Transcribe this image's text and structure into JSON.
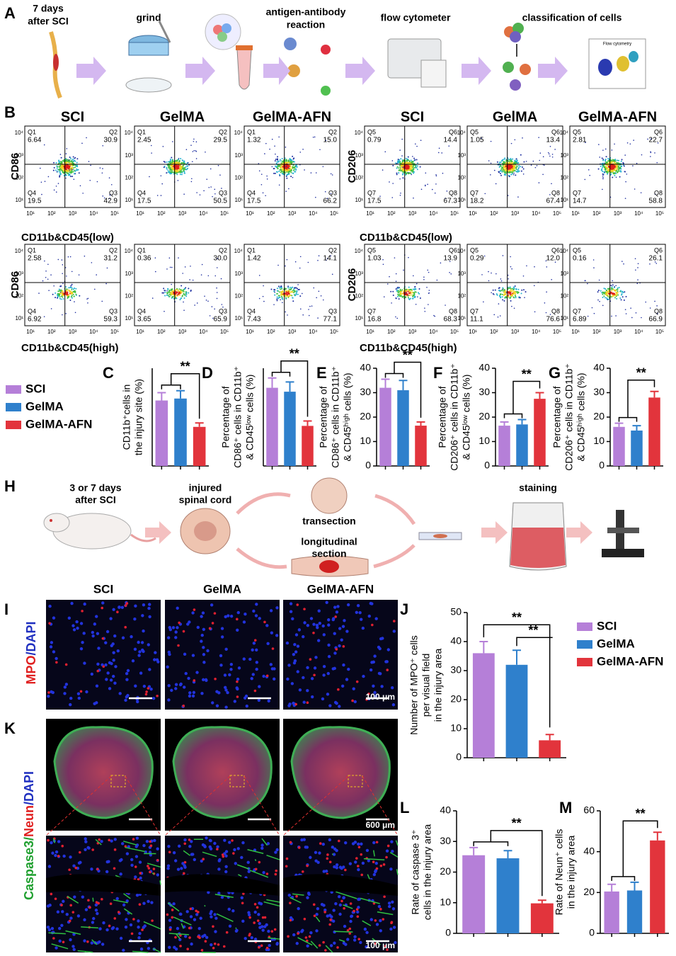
{
  "panel_labels": [
    "A",
    "B",
    "H",
    "I",
    "K"
  ],
  "groups": [
    {
      "name": "SCI",
      "color": "#b57fd8"
    },
    {
      "name": "GelMA",
      "color": "#2f80cc"
    },
    {
      "name": "GelMA-AFN",
      "color": "#e2343c"
    }
  ],
  "panel_a": {
    "steps": [
      "7 days",
      "after SCI",
      "grind",
      "antigen-antibody",
      "reaction",
      "flow cytometer",
      "classification of cells"
    ],
    "inset_title": "Flow cytometry"
  },
  "panel_b": {
    "markers": [
      "CD86",
      "CD206"
    ],
    "x_labels": [
      "CD11b&CD45(low)",
      "CD11b&CD45(high)"
    ],
    "axis_ticks": [
      "10¹",
      "10²",
      "10³",
      "10⁴",
      "10⁵"
    ],
    "quadrant_names": [
      [
        "Q1",
        "Q2",
        "Q4",
        "Q3"
      ],
      [
        "Q5",
        "Q6",
        "Q7",
        "Q8"
      ]
    ],
    "blocks": [
      {
        "plots": [
          [
            "6.64",
            "30.9",
            "19.5",
            "42.9"
          ],
          [
            "2.45",
            "29.5",
            "17.5",
            "50.5"
          ],
          [
            "1.32",
            "15.0",
            "17.5",
            "66.2"
          ]
        ]
      },
      {
        "plots": [
          [
            "0.79",
            "14.4",
            "17.5",
            "67.3"
          ],
          [
            "1.05",
            "13.4",
            "18.2",
            "67.4"
          ],
          [
            "2.81",
            "22.7",
            "14.7",
            "58.8"
          ]
        ]
      },
      {
        "plots": [
          [
            "2.58",
            "31.2",
            "6.92",
            "59.3"
          ],
          [
            "0.36",
            "30.0",
            "3.65",
            "65.9"
          ],
          [
            "1.42",
            "14.1",
            "7.43",
            "77.1"
          ]
        ]
      },
      {
        "plots": [
          [
            "1.03",
            "13.9",
            "16.8",
            "68.3"
          ],
          [
            "0.29",
            "12.0",
            "11.1",
            "76.6"
          ],
          [
            "0.16",
            "26.1",
            "6.89",
            "66.9"
          ]
        ]
      }
    ]
  },
  "panel_h": {
    "texts": [
      "3 or 7 days",
      "after SCI",
      "injured",
      "spinal cord",
      "transection",
      "longitudinal",
      "section",
      "staining"
    ]
  },
  "panel_i": {
    "stain": [
      "MPO",
      "/DAPI"
    ],
    "scale": "100 μm"
  },
  "panel_k": {
    "stain": [
      "Caspase3/",
      "Neun",
      "/DAPI"
    ],
    "scale_top": "600 μm",
    "scale_bottom": "100 μm"
  },
  "chart_data": [
    {
      "type": "bar",
      "panel": "C",
      "ylabel": [
        "CD11b⁺cells in",
        "the injury site (%)"
      ],
      "values": [
        6.7,
        6.9,
        4.0
      ],
      "errors": [
        0.8,
        0.8,
        0.4
      ],
      "ylim": [
        0,
        10
      ],
      "significance": [
        "**"
      ]
    },
    {
      "type": "bar",
      "panel": "D",
      "ylabel": [
        "Percentage of",
        "CD86⁺ cells in CD11b⁺",
        "& CD45ˡᵒʷ cells (%)"
      ],
      "values": [
        40,
        38,
        20.5
      ],
      "errors": [
        5,
        5,
        2.5
      ],
      "ylim": [
        0,
        50
      ],
      "significance": [
        "**"
      ]
    },
    {
      "type": "bar",
      "panel": "E",
      "ylabel": [
        "Percentage of",
        "CD86⁺ cells in CD11b⁺",
        "& CD45ʰⁱᵍʰ cells (%)"
      ],
      "values": [
        32,
        31,
        16.5
      ],
      "errors": [
        3.5,
        4,
        1.5
      ],
      "ylim": [
        0,
        40
      ],
      "yticks": [
        0,
        10,
        20,
        30,
        40
      ],
      "significance": [
        "**"
      ]
    },
    {
      "type": "bar",
      "panel": "F",
      "ylabel": [
        "Percentage of",
        "CD206⁺ cells in CD11b⁺",
        "& CD45ˡᵒʷ cells (%)"
      ],
      "values": [
        16.5,
        17,
        27.5
      ],
      "errors": [
        1.5,
        2,
        2.5
      ],
      "ylim": [
        0,
        40
      ],
      "yticks": [
        0,
        10,
        20,
        30,
        40
      ],
      "significance": [
        "**"
      ]
    },
    {
      "type": "bar",
      "panel": "G",
      "ylabel": [
        "Percentage of",
        "CD206⁺ cells in CD11b⁺",
        "& CD45ʰⁱᵍʰ cells (%)"
      ],
      "values": [
        16,
        14.5,
        28
      ],
      "errors": [
        1.5,
        2,
        2.5
      ],
      "ylim": [
        0,
        40
      ],
      "yticks": [
        0,
        10,
        20,
        30,
        40
      ],
      "significance": [
        "**"
      ]
    },
    {
      "type": "bar",
      "panel": "J",
      "ylabel": [
        "Number of MPO⁺ cells",
        "per visual field",
        "in the injury area"
      ],
      "values": [
        36,
        32,
        6
      ],
      "errors": [
        4,
        5,
        2
      ],
      "ylim": [
        0,
        50
      ],
      "yticks": [
        0,
        10,
        20,
        30,
        40,
        50
      ],
      "significance": [
        "**",
        "**"
      ]
    },
    {
      "type": "bar",
      "panel": "L",
      "ylabel": [
        "Rate of caspase 3⁺",
        "cells in the injury area"
      ],
      "values": [
        25.5,
        24.5,
        9.8
      ],
      "errors": [
        2.5,
        2.5,
        1
      ],
      "ylim": [
        0,
        40
      ],
      "yticks": [
        0,
        10,
        20,
        30,
        40
      ],
      "significance": [
        "**"
      ]
    },
    {
      "type": "bar",
      "panel": "M",
      "ylabel": [
        "Rate of Neun⁺ cells",
        "in the injury area"
      ],
      "values": [
        20.5,
        21,
        45.5
      ],
      "errors": [
        3.5,
        4,
        4
      ],
      "ylim": [
        0,
        60
      ],
      "yticks": [
        0,
        20,
        40,
        60
      ],
      "significance": [
        "**"
      ]
    }
  ]
}
